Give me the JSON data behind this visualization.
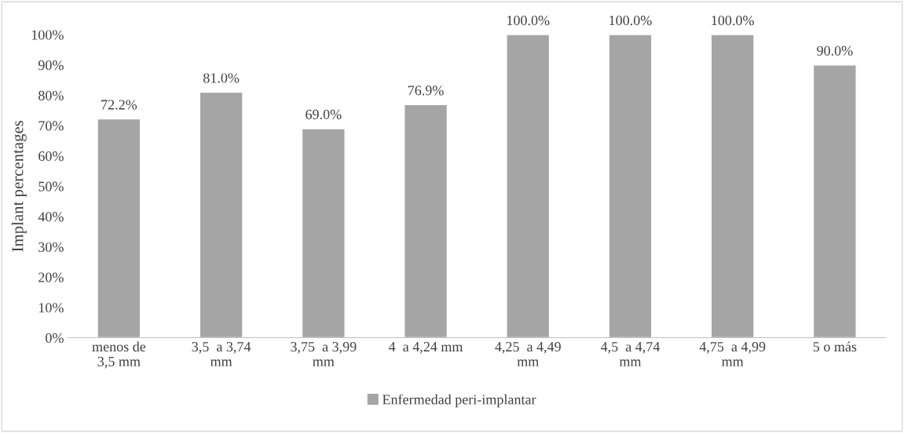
{
  "chart_data": {
    "type": "bar",
    "ylabel": "Implant percentages",
    "categories": [
      "menos de\n3,5 mm",
      "3,5  a 3,74\nmm",
      "3,75  a 3,99\nmm",
      "4  a 4,24 mm",
      "4,25  a 4,49\nmm",
      "4,5  a 4,74\nmm",
      "4,75  a 4,99\nmm",
      "5 o más"
    ],
    "series": [
      {
        "name": "Enfermedad peri-implantar",
        "color": "#a5a5a5",
        "values": [
          72.2,
          81.0,
          69.0,
          76.9,
          100.0,
          100.0,
          100.0,
          90.0
        ],
        "value_labels": [
          "72.2%",
          "81.0%",
          "69.0%",
          "76.9%",
          "100.0%",
          "100.0%",
          "100.0%",
          "90.0%"
        ]
      }
    ],
    "ylim": [
      0,
      100
    ],
    "yticks": [
      {
        "value": 0,
        "label": "0%"
      },
      {
        "value": 10,
        "label": "10%"
      },
      {
        "value": 20,
        "label": "20%"
      },
      {
        "value": 30,
        "label": "30%"
      },
      {
        "value": 40,
        "label": "40%"
      },
      {
        "value": 50,
        "label": "50%"
      },
      {
        "value": 60,
        "label": "60%"
      },
      {
        "value": 70,
        "label": "70%"
      },
      {
        "value": 80,
        "label": "80%"
      },
      {
        "value": 90,
        "label": "90%"
      },
      {
        "value": 100,
        "label": "100%"
      }
    ],
    "grid": false,
    "legend": "bottom"
  }
}
